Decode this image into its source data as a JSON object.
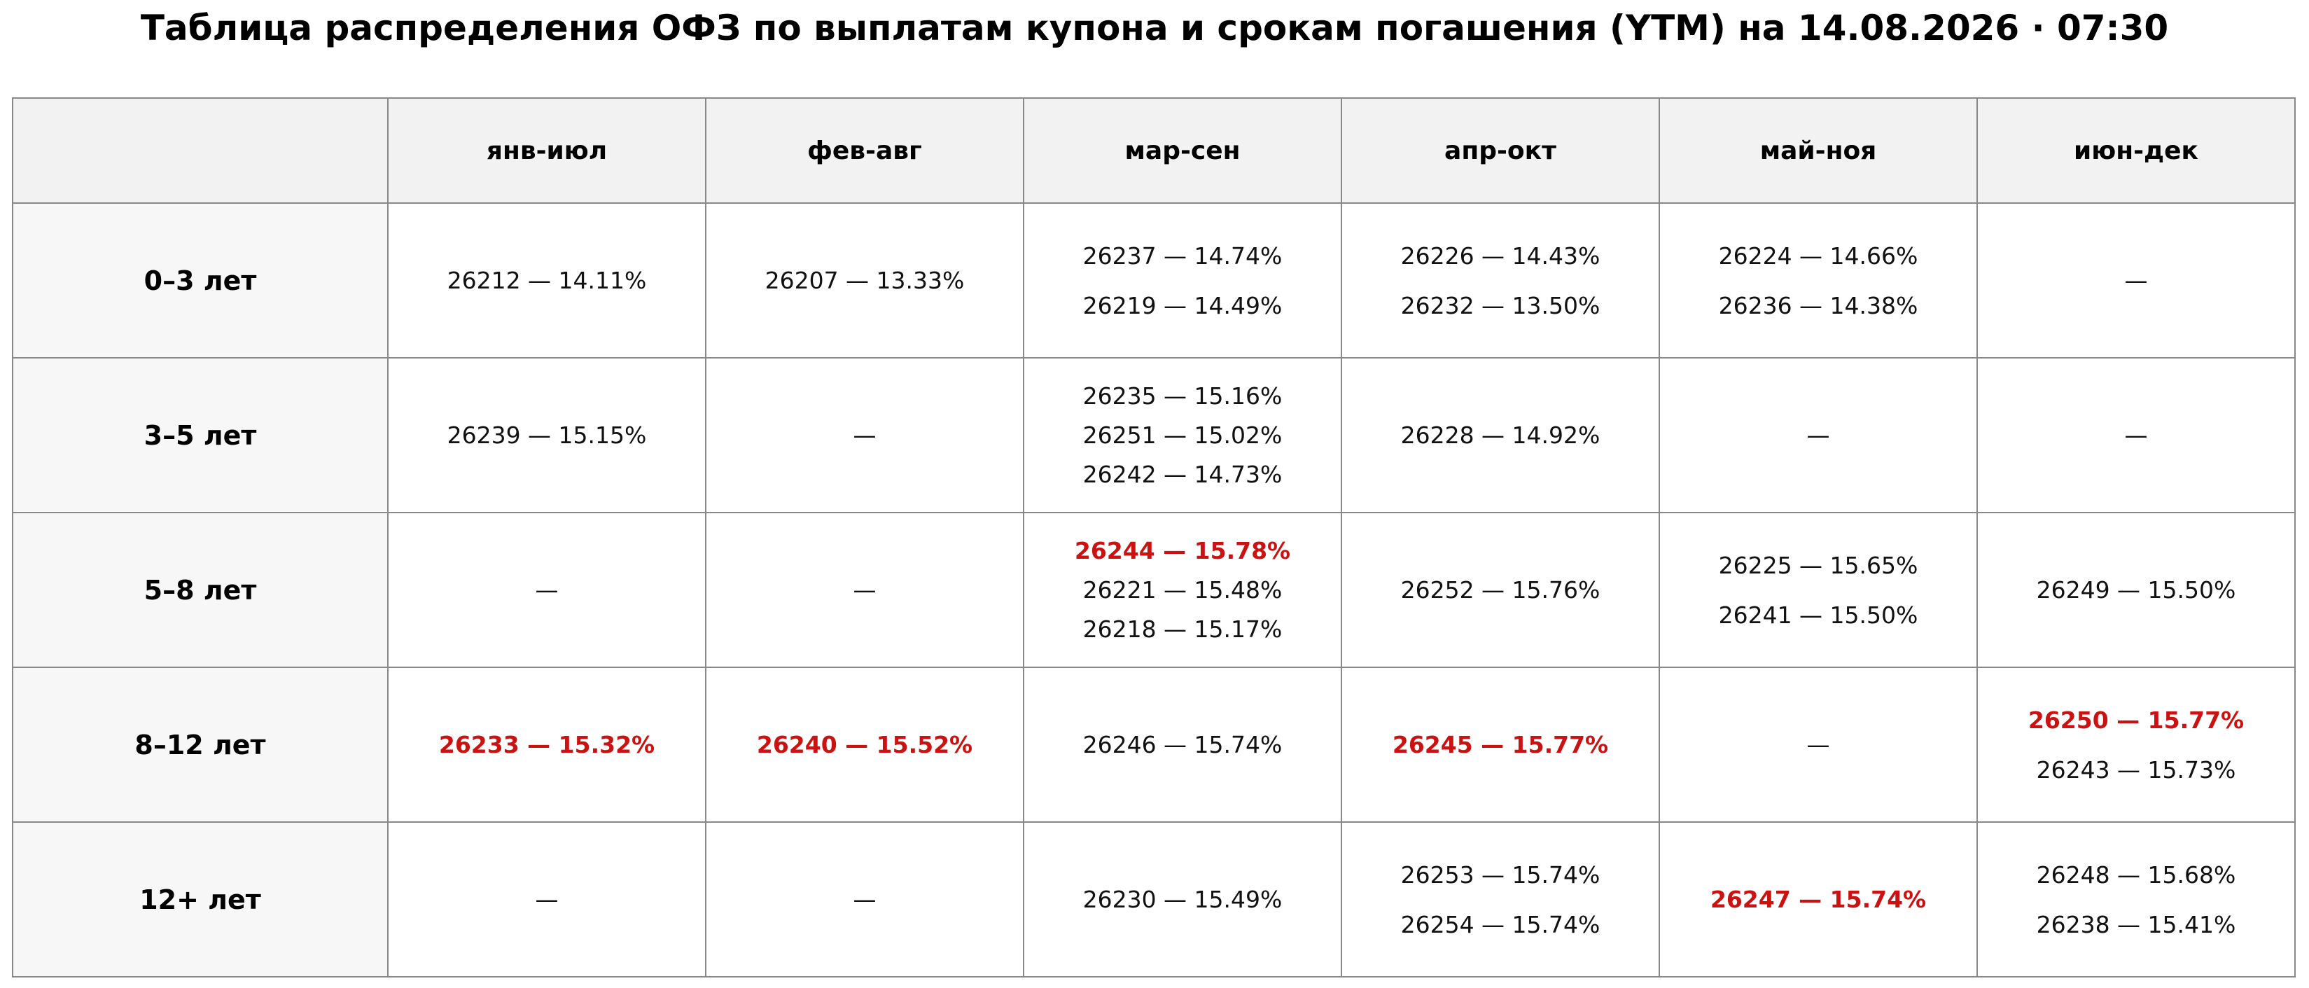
{
  "title": "Таблица распределения ОФЗ по выплатам купона и срокам погашения (YTM) на 14.08.2026 · 07:30",
  "table": {
    "columns": [
      "янв-июл",
      "фев-авг",
      "мар-сен",
      "апр-окт",
      "май-ноя",
      "июн-дек"
    ],
    "rows": [
      {
        "label": "0–3 лет",
        "cells": [
          [
            {
              "text": "26212 — 14.11%",
              "highlight": false
            }
          ],
          [
            {
              "text": "26207 — 13.33%",
              "highlight": false
            }
          ],
          [
            {
              "text": "26237 — 14.74%",
              "highlight": false
            },
            {
              "text": "26219 — 14.49%",
              "highlight": false
            }
          ],
          [
            {
              "text": "26226 — 14.43%",
              "highlight": false
            },
            {
              "text": "26232 — 13.50%",
              "highlight": false
            }
          ],
          [
            {
              "text": "26224 — 14.66%",
              "highlight": false
            },
            {
              "text": "26236 — 14.38%",
              "highlight": false
            }
          ],
          [
            {
              "text": "—",
              "highlight": false
            }
          ]
        ]
      },
      {
        "label": "3–5 лет",
        "cells": [
          [
            {
              "text": "26239 — 15.15%",
              "highlight": false
            }
          ],
          [
            {
              "text": "—",
              "highlight": false
            }
          ],
          [
            {
              "text": "26235 — 15.16%",
              "highlight": false
            },
            {
              "text": "26251 — 15.02%",
              "highlight": false
            },
            {
              "text": "26242 — 14.73%",
              "highlight": false
            }
          ],
          [
            {
              "text": "26228 — 14.92%",
              "highlight": false
            }
          ],
          [
            {
              "text": "—",
              "highlight": false
            }
          ],
          [
            {
              "text": "—",
              "highlight": false
            }
          ]
        ]
      },
      {
        "label": "5–8 лет",
        "cells": [
          [
            {
              "text": "—",
              "highlight": false
            }
          ],
          [
            {
              "text": "—",
              "highlight": false
            }
          ],
          [
            {
              "text": "26244 — 15.78%",
              "highlight": true
            },
            {
              "text": "26221 — 15.48%",
              "highlight": false
            },
            {
              "text": "26218 — 15.17%",
              "highlight": false
            }
          ],
          [
            {
              "text": "26252 — 15.76%",
              "highlight": false
            }
          ],
          [
            {
              "text": "26225 — 15.65%",
              "highlight": false
            },
            {
              "text": "26241 — 15.50%",
              "highlight": false
            }
          ],
          [
            {
              "text": "26249 — 15.50%",
              "highlight": false
            }
          ]
        ]
      },
      {
        "label": "8–12 лет",
        "cells": [
          [
            {
              "text": "26233 — 15.32%",
              "highlight": true
            }
          ],
          [
            {
              "text": "26240 — 15.52%",
              "highlight": true
            }
          ],
          [
            {
              "text": "26246 — 15.74%",
              "highlight": false
            }
          ],
          [
            {
              "text": "26245 — 15.77%",
              "highlight": true
            }
          ],
          [
            {
              "text": "—",
              "highlight": false
            }
          ],
          [
            {
              "text": "26250 — 15.77%",
              "highlight": true
            },
            {
              "text": "26243 — 15.73%",
              "highlight": false
            }
          ]
        ]
      },
      {
        "label": "12+ лет",
        "cells": [
          [
            {
              "text": "—",
              "highlight": false
            }
          ],
          [
            {
              "text": "—",
              "highlight": false
            }
          ],
          [
            {
              "text": "26230 — 15.49%",
              "highlight": false
            }
          ],
          [
            {
              "text": "26253 — 15.74%",
              "highlight": false
            },
            {
              "text": "26254 — 15.74%",
              "highlight": false
            }
          ],
          [
            {
              "text": "26247 — 15.74%",
              "highlight": true
            }
          ],
          [
            {
              "text": "26248 — 15.68%",
              "highlight": false
            },
            {
              "text": "26238 — 15.41%",
              "highlight": false
            }
          ]
        ]
      }
    ]
  }
}
